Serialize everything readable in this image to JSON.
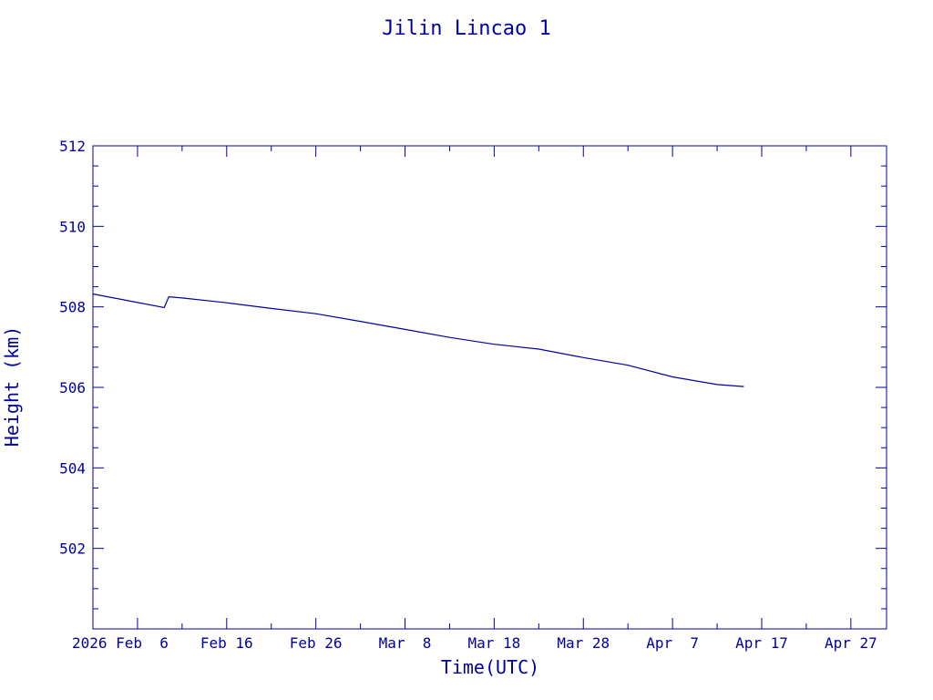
{
  "chart_data": {
    "type": "line",
    "title": "Jilin Lincao 1",
    "xlabel": "Time(UTC)",
    "ylabel": "Height (km)",
    "color": "#0000a0",
    "x_start": "2026-02-01",
    "x_end": "2026-05-01",
    "ylim": [
      500,
      512
    ],
    "y_ticks": [
      502,
      504,
      506,
      508,
      510,
      512
    ],
    "x_ticks": [
      {
        "date": "2026-02-06",
        "label": "2026 Feb  6"
      },
      {
        "date": "2026-02-16",
        "label": "Feb 16"
      },
      {
        "date": "2026-02-26",
        "label": "Feb 26"
      },
      {
        "date": "2026-03-08",
        "label": "Mar  8"
      },
      {
        "date": "2026-03-18",
        "label": "Mar 18"
      },
      {
        "date": "2026-03-28",
        "label": "Mar 28"
      },
      {
        "date": "2026-04-07",
        "label": "Apr  7"
      },
      {
        "date": "2026-04-17",
        "label": "Apr 17"
      },
      {
        "date": "2026-04-27",
        "label": "Apr 27"
      }
    ],
    "series": [
      {
        "points": [
          [
            "2026-02-01",
            508.32
          ],
          [
            "2026-02-05",
            508.15
          ],
          [
            "2026-02-09",
            507.98
          ],
          [
            "2026-02-09T12:00",
            508.25
          ],
          [
            "2026-02-11",
            508.22
          ],
          [
            "2026-02-16",
            508.1
          ],
          [
            "2026-02-21",
            507.96
          ],
          [
            "2026-02-26",
            507.83
          ],
          [
            "2026-03-03",
            507.64
          ],
          [
            "2026-03-08",
            507.44
          ],
          [
            "2026-03-13",
            507.24
          ],
          [
            "2026-03-18",
            507.07
          ],
          [
            "2026-03-23",
            506.95
          ],
          [
            "2026-03-28",
            506.74
          ],
          [
            "2026-04-02",
            506.55
          ],
          [
            "2026-04-07",
            506.26
          ],
          [
            "2026-04-12",
            506.07
          ],
          [
            "2026-04-15",
            506.02
          ]
        ]
      }
    ]
  }
}
